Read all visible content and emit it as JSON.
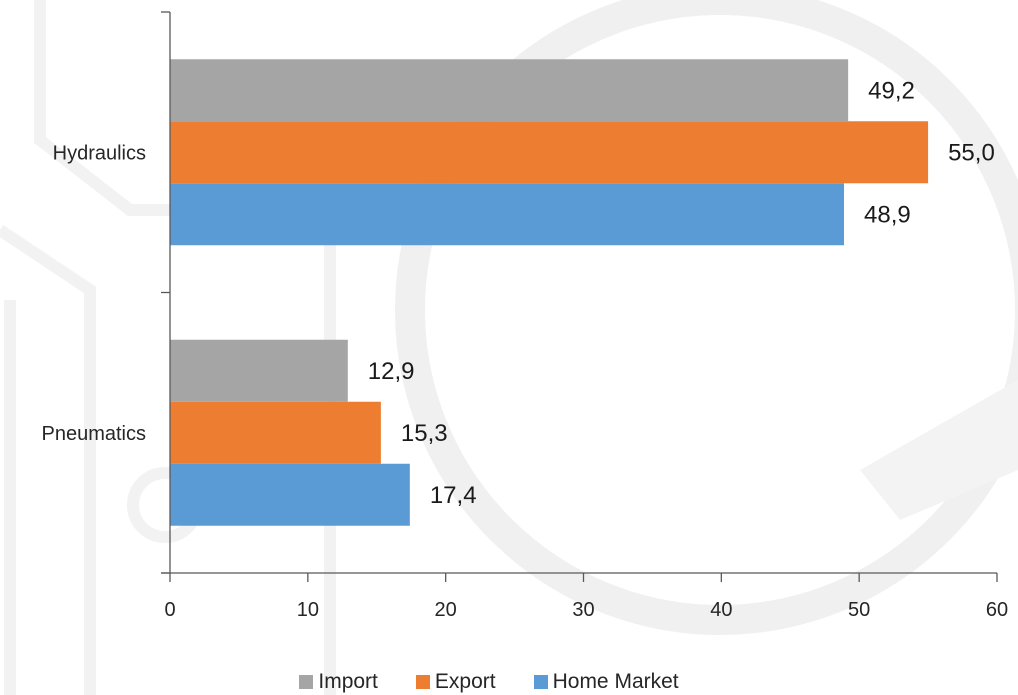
{
  "chart_data": {
    "type": "bar",
    "orientation": "horizontal",
    "categories": [
      "Hydraulics",
      "Pneumatics"
    ],
    "series": [
      {
        "name": "Import",
        "values": [
          49.2,
          12.9
        ],
        "labels": [
          "49,2",
          "12,9"
        ],
        "color": "#a5a5a5"
      },
      {
        "name": "Export",
        "values": [
          55.0,
          15.3
        ],
        "labels": [
          "55,0",
          "15,3"
        ],
        "color": "#ed7d31"
      },
      {
        "name": "Home Market",
        "values": [
          48.9,
          17.4
        ],
        "labels": [
          "48,9",
          "17,4"
        ],
        "color": "#5b9bd5"
      }
    ],
    "xlim": [
      0,
      60
    ],
    "xticks": [
      0,
      10,
      20,
      30,
      40,
      50,
      60
    ],
    "xtick_labels": [
      "0",
      "10",
      "20",
      "30",
      "40",
      "50",
      "60"
    ],
    "grid": false,
    "legend": "bottom",
    "title": "",
    "xlabel": "",
    "ylabel": ""
  }
}
